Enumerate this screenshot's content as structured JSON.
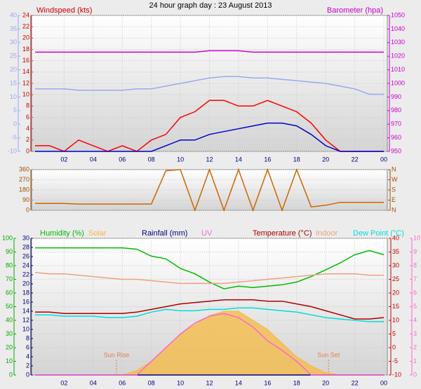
{
  "chart_data": [
    {
      "type": "line",
      "title": "24 hour graph day : 23 August 2013",
      "ylabel": "Windspeed (kts)",
      "y2label": "Barometer (hpa)",
      "x": [
        0,
        1,
        2,
        3,
        4,
        5,
        6,
        7,
        8,
        9,
        10,
        11,
        12,
        13,
        14,
        15,
        16,
        17,
        18,
        19,
        20,
        21,
        22,
        23,
        24
      ],
      "xlim": [
        0,
        24
      ],
      "xticks": [
        {
          "value": 2,
          "label": "02"
        },
        {
          "value": 4,
          "label": "04"
        },
        {
          "value": 6,
          "label": "06"
        },
        {
          "value": 8,
          "label": "08"
        },
        10,
        12,
        14,
        16,
        18,
        20,
        22,
        {
          "value": 24,
          "label": "00"
        }
      ],
      "ylim": [
        0,
        24
      ],
      "yticks": [
        0,
        2,
        4,
        6,
        8,
        10,
        12,
        14,
        16,
        18,
        20,
        22,
        24
      ],
      "y2lim": [
        950,
        1050
      ],
      "y2ticks": [
        950,
        960,
        970,
        980,
        990,
        1000,
        1010,
        1020,
        1030,
        1040,
        1050
      ],
      "y3lim": [
        -10,
        40
      ],
      "y3ticks": [
        -10,
        -5,
        0,
        5,
        10,
        15,
        20,
        25,
        30,
        35,
        40
      ],
      "axis_colors": {
        "y": "#cc0000",
        "y2": "#cc00cc",
        "y3": "#9aa8f0"
      },
      "grid": true,
      "series": [
        {
          "color": "#9aa8f0",
          "axis": "y3",
          "values": [
            13,
            13,
            13,
            12.5,
            12.5,
            12.5,
            12.5,
            13,
            13,
            14,
            15,
            16,
            17,
            17.5,
            17.5,
            17,
            17,
            16.5,
            16,
            15.5,
            15,
            14,
            13,
            11,
            11
          ]
        },
        {
          "color": "#cc00cc",
          "axis": "y2",
          "values": [
            1023,
            1023,
            1023,
            1023,
            1023,
            1023,
            1023,
            1023,
            1023,
            1023,
            1023,
            1023,
            1024,
            1024,
            1024,
            1023,
            1023,
            1023,
            1023,
            1023,
            1023,
            1023,
            1023,
            1023,
            1023
          ]
        },
        {
          "color": "#ff0000",
          "axis": "y",
          "values": [
            1,
            1,
            0,
            2,
            1,
            0,
            1,
            0,
            2,
            3,
            6,
            7,
            9,
            9,
            8,
            8,
            9,
            8,
            7,
            5,
            2,
            0,
            0,
            0,
            0
          ]
        },
        {
          "color": "#0000cc",
          "axis": "y",
          "values": [
            0,
            0,
            0,
            0,
            0,
            0,
            0,
            0,
            0,
            1,
            2,
            2,
            3,
            3.5,
            4,
            4.5,
            5,
            5,
            4.5,
            3,
            1,
            0,
            0,
            0,
            0
          ]
        }
      ]
    },
    {
      "type": "line",
      "x": [
        0,
        1,
        2,
        3,
        4,
        5,
        6,
        7,
        8,
        9,
        10,
        11,
        12,
        13,
        14,
        15,
        16,
        17,
        18,
        19,
        20,
        21,
        22,
        23,
        24
      ],
      "xlim": [
        0,
        24
      ],
      "ylim": [
        0,
        360
      ],
      "yticks": [
        0,
        90,
        180,
        270,
        360
      ],
      "y2lim": [
        0,
        360
      ],
      "y2ticks": [
        {
          "value": 0,
          "label": "N"
        },
        {
          "value": 90,
          "label": "E"
        },
        {
          "value": 180,
          "label": "S"
        },
        {
          "value": 270,
          "label": "W"
        },
        {
          "value": 360,
          "label": "N"
        }
      ],
      "axis_colors": {
        "y": "#a05000",
        "y2": "#a05000"
      },
      "grid": true,
      "series": [
        {
          "color": "#cc6600",
          "axis": "y",
          "values": [
            60,
            60,
            60,
            55,
            55,
            55,
            55,
            55,
            55,
            350,
            360,
            0,
            360,
            0,
            360,
            0,
            360,
            0,
            360,
            30,
            45,
            70,
            70,
            70,
            70
          ]
        }
      ]
    },
    {
      "type": "line",
      "x": [
        0,
        1,
        2,
        3,
        4,
        5,
        6,
        7,
        8,
        9,
        10,
        11,
        12,
        13,
        14,
        15,
        16,
        17,
        18,
        19,
        20,
        21,
        22,
        23,
        24
      ],
      "xlim": [
        0,
        24
      ],
      "xticks": [
        {
          "value": 2,
          "label": "02"
        },
        {
          "value": 4,
          "label": "04"
        },
        {
          "value": 6,
          "label": "06"
        },
        {
          "value": 8,
          "label": "08"
        },
        10,
        12,
        14,
        16,
        18,
        20,
        22,
        {
          "value": 24,
          "label": "00"
        }
      ],
      "ylim": [
        0,
        100
      ],
      "yticks": [
        0,
        10,
        20,
        30,
        40,
        50,
        60,
        70,
        80,
        90,
        100
      ],
      "y2lim": [
        -10,
        40
      ],
      "y2ticks": [
        -10,
        -5,
        0,
        5,
        10,
        15,
        20,
        25,
        30,
        35,
        40
      ],
      "y3lim": [
        0,
        30
      ],
      "y3ticks": [
        0,
        2,
        4,
        6,
        8,
        10,
        12,
        14,
        16,
        18,
        20,
        22,
        24,
        26,
        28,
        30
      ],
      "y4lim": [
        0,
        10
      ],
      "y4ticks": [
        0,
        1,
        2,
        3,
        4,
        5,
        6,
        7,
        8,
        9,
        10
      ],
      "axis_colors": {
        "y": "#00aa00",
        "y2": "#cc0000",
        "y3": "#000080",
        "y4": "#ff66cc"
      },
      "grid": true,
      "series": [
        {
          "name": "Humidity (%)",
          "color": "#00bb00",
          "axis": "y",
          "values": [
            93,
            93,
            93,
            93,
            93,
            93,
            93,
            92,
            87,
            85,
            78,
            74,
            68,
            63,
            65,
            64,
            65,
            66,
            68,
            72,
            77,
            82,
            88,
            91,
            88
          ]
        },
        {
          "name": "Solar",
          "color": "#f5b942",
          "axis": "y3",
          "style": "area",
          "values": [
            0,
            0,
            0,
            0,
            0,
            0,
            0,
            1,
            3,
            6,
            9,
            11,
            13,
            14,
            14,
            12,
            10,
            7,
            4,
            2,
            0.5,
            0,
            0,
            0,
            0
          ]
        },
        {
          "name": "Rainfall (mm)",
          "color": "#000080",
          "axis": "y3",
          "values": [
            0,
            0,
            0,
            0,
            0,
            0,
            0,
            0,
            0,
            0,
            0,
            0,
            0,
            0,
            0,
            0,
            0,
            0,
            0,
            0,
            0,
            0,
            0,
            0,
            0
          ]
        },
        {
          "name": "UV",
          "color": "#ff66cc",
          "axis": "y4",
          "values": [
            0,
            0,
            0,
            0,
            0,
            0,
            0,
            0,
            1,
            2,
            3,
            3.8,
            4.3,
            4.5,
            4.2,
            3.5,
            2.5,
            1.8,
            1,
            0,
            0,
            0,
            0,
            0,
            0
          ]
        },
        {
          "name": "Temperature (°C)",
          "color": "#aa0000",
          "axis": "y2",
          "values": [
            13,
            13,
            12.5,
            12.5,
            12.5,
            12.5,
            12.5,
            13,
            14,
            15,
            16,
            16.5,
            17,
            17.5,
            17.5,
            17.5,
            17,
            17,
            16,
            15,
            13.5,
            12,
            10.5,
            10.5,
            11
          ]
        },
        {
          "name": "Indoor",
          "color": "#f0a080",
          "axis": "y2",
          "values": [
            27.5,
            27,
            27,
            26.5,
            26,
            25.5,
            25,
            25,
            24.5,
            24,
            23.5,
            23.5,
            23.5,
            23.5,
            24,
            24.5,
            25,
            25.5,
            26,
            26.5,
            27,
            27,
            27,
            26.5,
            26.5
          ]
        },
        {
          "name": "Dew Point (°C)",
          "color": "#00dddd",
          "axis": "y2",
          "values": [
            12,
            12,
            11.5,
            11.5,
            11.5,
            11,
            11,
            11.5,
            13,
            14,
            13.5,
            13.5,
            14,
            14,
            14.5,
            14.5,
            14,
            13.5,
            13,
            12,
            11,
            10.5,
            10,
            9.5,
            9.5
          ]
        }
      ],
      "annotations": [
        {
          "text": "Sun Rise",
          "x": 5.6
        },
        {
          "text": "Sun Set",
          "x": 20.2
        }
      ]
    }
  ]
}
